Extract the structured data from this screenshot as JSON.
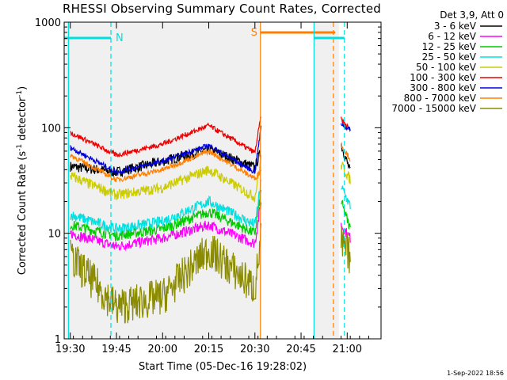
{
  "chart_data": {
    "type": "line",
    "title": "RHESSI Observing Summary Count Rates, Corrected",
    "xlabel": "Start Time (05-Dec-16 19:28:02)",
    "ylabel": "Corrected Count Rate (s",
    "ylabel_sup1": "-1",
    "ylabel_mid": " detector",
    "ylabel_sup2": "-1",
    "ylabel_end": ")",
    "yscale": "log",
    "ylim": [
      1,
      1000
    ],
    "xlim_minutes": [
      19.4667,
      21.1833
    ],
    "x_ticks": [
      "19:30",
      "19:45",
      "20:00",
      "20:15",
      "20:30",
      "20:45",
      "21:00"
    ],
    "x_tick_minutes": [
      19.5,
      19.75,
      20.0,
      20.25,
      20.5,
      20.75,
      21.0
    ],
    "y_ticks": [
      "1",
      "10",
      "100",
      "1000"
    ],
    "y_tick_values": [
      1,
      10,
      100,
      1000
    ],
    "legend_title": "Det 3,9, Att 0",
    "legend_placement": "right",
    "series": [
      {
        "name": "3 - 6 keV",
        "color": "#000000",
        "x": [
          "19:30",
          "19:45",
          "20:00",
          "20:15",
          "20:30",
          "20:32",
          "20:58",
          "21:01"
        ],
        "values": [
          43,
          38,
          48,
          62,
          42,
          60,
          70,
          38
        ]
      },
      {
        "name": "6 - 12 keV",
        "color": "#ff00ff",
        "x": [
          "19:30",
          "19:45",
          "20:00",
          "20:15",
          "20:30",
          "20:32",
          "20:58",
          "21:01"
        ],
        "values": [
          10,
          7.5,
          9,
          12,
          8,
          20,
          12,
          9
        ]
      },
      {
        "name": "12 - 25 keV",
        "color": "#00cc00",
        "x": [
          "19:30",
          "19:45",
          "20:00",
          "20:15",
          "20:30",
          "20:32",
          "20:58",
          "21:01"
        ],
        "values": [
          12,
          9.5,
          11,
          16,
          10,
          25,
          20,
          11
        ]
      },
      {
        "name": "25 - 50 keV",
        "color": "#00e0e0",
        "x": [
          "19:30",
          "19:45",
          "20:00",
          "20:15",
          "20:30",
          "20:32",
          "20:58",
          "21:01"
        ],
        "values": [
          15,
          11,
          13,
          20,
          12,
          30,
          28,
          18
        ]
      },
      {
        "name": "50 - 100 keV",
        "color": "#cccc00",
        "x": [
          "19:30",
          "19:45",
          "20:00",
          "20:15",
          "20:30",
          "20:32",
          "20:58",
          "21:01"
        ],
        "values": [
          35,
          23,
          27,
          40,
          22,
          50,
          45,
          32
        ]
      },
      {
        "name": "100 - 300 keV",
        "color": "#ee0000",
        "x": [
          "19:30",
          "19:45",
          "20:00",
          "20:15",
          "20:30",
          "20:32",
          "20:58",
          "21:01"
        ],
        "values": [
          90,
          55,
          70,
          105,
          58,
          130,
          120,
          95
        ]
      },
      {
        "name": "300 - 800 keV",
        "color": "#0000dd",
        "x": [
          "19:30",
          "19:45",
          "20:00",
          "20:15",
          "20:30",
          "20:32",
          "20:58",
          "21:01"
        ],
        "values": [
          65,
          38,
          48,
          68,
          38,
          100,
          110,
          95
        ]
      },
      {
        "name": "800 - 7000 keV",
        "color": "#ff7f00",
        "x": [
          "19:30",
          "19:45",
          "20:00",
          "20:15",
          "20:30",
          "20:32",
          "20:58",
          "21:01"
        ],
        "values": [
          55,
          32,
          40,
          60,
          33,
          40,
          70,
          50
        ]
      },
      {
        "name": "7000 - 15000 keV",
        "color": "#8b8b00",
        "x": [
          "19:30",
          "19:45",
          "20:00",
          "20:15",
          "20:30",
          "20:32",
          "20:58",
          "21:01"
        ],
        "values": [
          6,
          2,
          2.5,
          7,
          3,
          9,
          8,
          6
        ]
      }
    ],
    "annotations": [
      {
        "label": "N",
        "color": "#00e0e0"
      },
      {
        "label": "S",
        "color": "#ff7f00"
      }
    ],
    "footer": "1-Sep-2022 18:56"
  }
}
